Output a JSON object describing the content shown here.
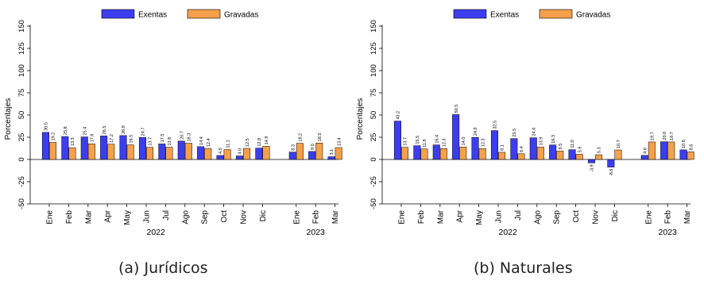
{
  "chart_data": [
    {
      "type": "bar",
      "caption": "(a) Jurídicos",
      "ylabel": "Porcentajes",
      "ylim": [
        -50,
        150
      ],
      "yticks": [
        -50,
        -25,
        0,
        25,
        50,
        75,
        100,
        125,
        150
      ],
      "legend_position": "top-center",
      "grid": false,
      "categories": [
        "Ene",
        "Feb",
        "Mar",
        "Apr",
        "May",
        "Jun",
        "Jul",
        "Ago",
        "Sep",
        "Oct",
        "Nov",
        "Dic",
        "Ene",
        "Feb",
        "Mar"
      ],
      "year_groups": [
        {
          "label": "2022",
          "count": 12
        },
        {
          "label": "2023",
          "count": 3
        }
      ],
      "series": [
        {
          "name": "Exentas",
          "color": "#3d3df0",
          "values": [
            30.5,
            25.8,
            25.4,
            26.5,
            26.9,
            24.7,
            17.5,
            20.7,
            14.4,
            4.5,
            4.0,
            12.8,
            8.3,
            9.0,
            3.1
          ],
          "labels": [
            "30.5",
            "25.8",
            "25.4",
            "26.5",
            "26.9",
            "24.7",
            "17.5",
            "20.7",
            "14.4",
            "4.5",
            "4.0",
            "12.8",
            "8.3",
            "9.0",
            "3.1"
          ]
        },
        {
          "name": "Gravadas",
          "color": "#f5a04a",
          "values": [
            19.2,
            13.3,
            17.6,
            17.2,
            16.5,
            13.7,
            13.8,
            18.3,
            12.4,
            11.1,
            12.5,
            14.9,
            18.2,
            18.5,
            13.4
          ],
          "labels": [
            "19.2",
            "13.3",
            "17.6",
            "17.2",
            "16.5",
            "13.7",
            "13.8",
            "18.3",
            "12.4",
            "11.1",
            "12.5",
            "14.9",
            "18.2",
            "18.5",
            "13.4"
          ]
        }
      ]
    },
    {
      "type": "bar",
      "caption": "(b) Naturales",
      "ylabel": "Porcentajes",
      "ylim": [
        -50,
        150
      ],
      "yticks": [
        -50,
        -25,
        0,
        25,
        50,
        75,
        100,
        125,
        150
      ],
      "legend_position": "top-center",
      "grid": false,
      "categories": [
        "Ene",
        "Feb",
        "Mar",
        "Apr",
        "May",
        "Jun",
        "Jul",
        "Ago",
        "Sep",
        "Oct",
        "Nov",
        "Dic",
        "Ene",
        "Feb",
        "Mar"
      ],
      "year_groups": [
        {
          "label": "2022",
          "count": 12
        },
        {
          "label": "2023",
          "count": 3
        }
      ],
      "series": [
        {
          "name": "Exentas",
          "color": "#3d3df0",
          "values": [
            43.2,
            15.5,
            16.4,
            50.5,
            24.9,
            32.5,
            23.5,
            24.4,
            16.3,
            11.0,
            -3.9,
            -8.6,
            4.6,
            20.0,
            10.8
          ],
          "labels": [
            "43.2",
            "15.5",
            "16.4",
            "50.5",
            "24.9",
            "32.5",
            "23.5",
            "24.4",
            "16.3",
            "11.0",
            "-3.9",
            "-8.6",
            "4.6",
            "20.0",
            "10.8"
          ]
        },
        {
          "name": "Gravadas",
          "color": "#f5a04a",
          "values": [
            13.7,
            11.8,
            12.3,
            14.0,
            12.3,
            8.1,
            6.4,
            13.9,
            9.5,
            5.9,
            5.3,
            10.7,
            19.7,
            19.7,
            8.6
          ],
          "labels": [
            "13.7",
            "11.8",
            "12.3",
            "14.0",
            "12.3",
            "8.1",
            "6.4",
            "13.9",
            "9.5",
            "5.9",
            "5.3",
            "10.7",
            "19.7",
            "19.7",
            "8.6"
          ]
        }
      ]
    }
  ]
}
